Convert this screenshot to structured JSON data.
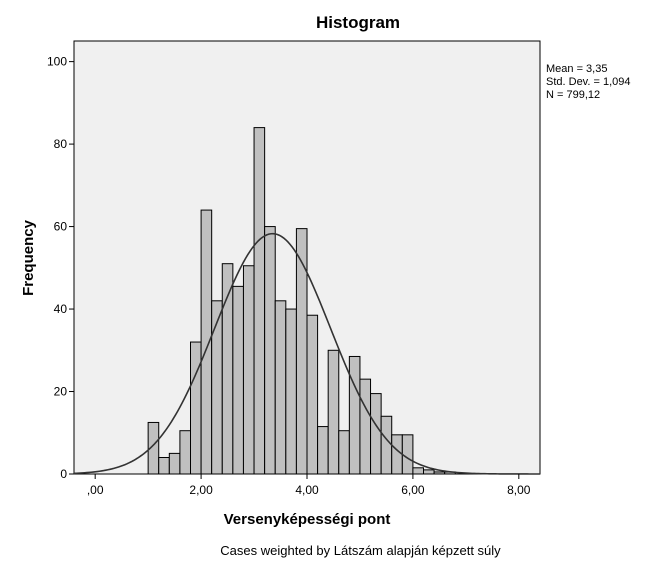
{
  "chart_data": {
    "type": "bar",
    "title": "Histogram",
    "xlabel": "Versenyképességi pont",
    "ylabel": "Frequency",
    "xlim": [
      -0.4,
      8.4
    ],
    "ylim": [
      0,
      105
    ],
    "x_ticks": [
      {
        "value": 0,
        "label": ",00"
      },
      {
        "value": 2,
        "label": "2,00"
      },
      {
        "value": 4,
        "label": "4,00"
      },
      {
        "value": 6,
        "label": "6,00"
      },
      {
        "value": 8,
        "label": "8,00"
      }
    ],
    "y_ticks": [
      {
        "value": 0,
        "label": "0"
      },
      {
        "value": 20,
        "label": "20"
      },
      {
        "value": 40,
        "label": "40"
      },
      {
        "value": 60,
        "label": "60"
      },
      {
        "value": 80,
        "label": "80"
      },
      {
        "value": 100,
        "label": "100"
      }
    ],
    "bin_width": 0.2,
    "bins": [
      {
        "start": 1.0,
        "value": 12.5
      },
      {
        "start": 1.2,
        "value": 4
      },
      {
        "start": 1.4,
        "value": 5
      },
      {
        "start": 1.6,
        "value": 10.5
      },
      {
        "start": 1.8,
        "value": 32
      },
      {
        "start": 2.0,
        "value": 64
      },
      {
        "start": 2.2,
        "value": 42
      },
      {
        "start": 2.4,
        "value": 51
      },
      {
        "start": 2.6,
        "value": 45.5
      },
      {
        "start": 2.8,
        "value": 50.5
      },
      {
        "start": 3.0,
        "value": 84
      },
      {
        "start": 3.2,
        "value": 60
      },
      {
        "start": 3.4,
        "value": 42
      },
      {
        "start": 3.6,
        "value": 40
      },
      {
        "start": 3.8,
        "value": 59.5
      },
      {
        "start": 4.0,
        "value": 38.5
      },
      {
        "start": 4.2,
        "value": 11.5
      },
      {
        "start": 4.4,
        "value": 30
      },
      {
        "start": 4.6,
        "value": 10.5
      },
      {
        "start": 4.8,
        "value": 28.5
      },
      {
        "start": 5.0,
        "value": 23
      },
      {
        "start": 5.2,
        "value": 19.5
      },
      {
        "start": 5.4,
        "value": 14
      },
      {
        "start": 5.6,
        "value": 9.5
      },
      {
        "start": 5.8,
        "value": 9.5
      },
      {
        "start": 6.0,
        "value": 1.5
      },
      {
        "start": 6.2,
        "value": 1
      },
      {
        "start": 6.4,
        "value": 0.5
      },
      {
        "start": 6.6,
        "value": 0.5
      }
    ],
    "normal_curve": {
      "mean": 3.35,
      "std_dev": 1.094,
      "n": 799.12
    },
    "bar_color": "#c0c0c0",
    "plot_background": "#f0f0f0",
    "grid": false,
    "legend": "none"
  },
  "stats_box": {
    "mean_text": "Mean = 3,35",
    "std_text": "Std. Dev. = 1,094",
    "n_text": "N = 799,12"
  },
  "footnote": "Cases weighted by Látszám alapján képzett súly"
}
